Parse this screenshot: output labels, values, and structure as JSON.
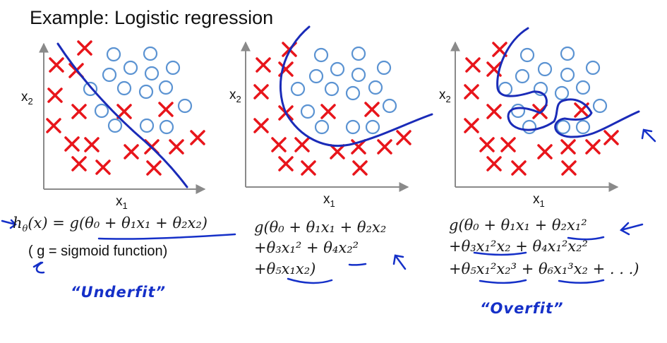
{
  "title": "Example: Logistic regression",
  "panels": [
    {
      "ylabel": "x",
      "ylabel_sub": "2",
      "xlabel": "x",
      "xlabel_sub": "1",
      "hypothesis_prefix": "h",
      "hypothesis_sub": "θ",
      "hypothesis_body": "(x) = g(θ₀ + θ₁x₁ + θ₂x₂)",
      "note": "( g = sigmoid function)",
      "annotation": "“Underfit”"
    },
    {
      "ylabel": "x",
      "ylabel_sub": "2",
      "xlabel": "x",
      "xlabel_sub": "1",
      "line1": "g(θ₀ + θ₁x₁ + θ₂x₂",
      "line2": "+θ₃x₁² + θ₄x₂²",
      "line3": "+θ₅x₁x₂)"
    },
    {
      "ylabel": "x",
      "ylabel_sub": "2",
      "xlabel": "x",
      "xlabel_sub": "1",
      "line1": "g(θ₀ + θ₁x₁ + θ₂x₁²",
      "line2": "+θ₃x₁²x₂ + θ₄x₁²x₂²",
      "line3": "+θ₅x₁²x₂³ + θ₆x₁³x₂ + . . .)",
      "annotation": "“Overfit”"
    }
  ],
  "colors": {
    "cross": "#e8151b",
    "circle": "#5b93d2",
    "boundary": "#1a2bb8",
    "axis": "#8a8a8a",
    "ink": "#1530c8"
  }
}
